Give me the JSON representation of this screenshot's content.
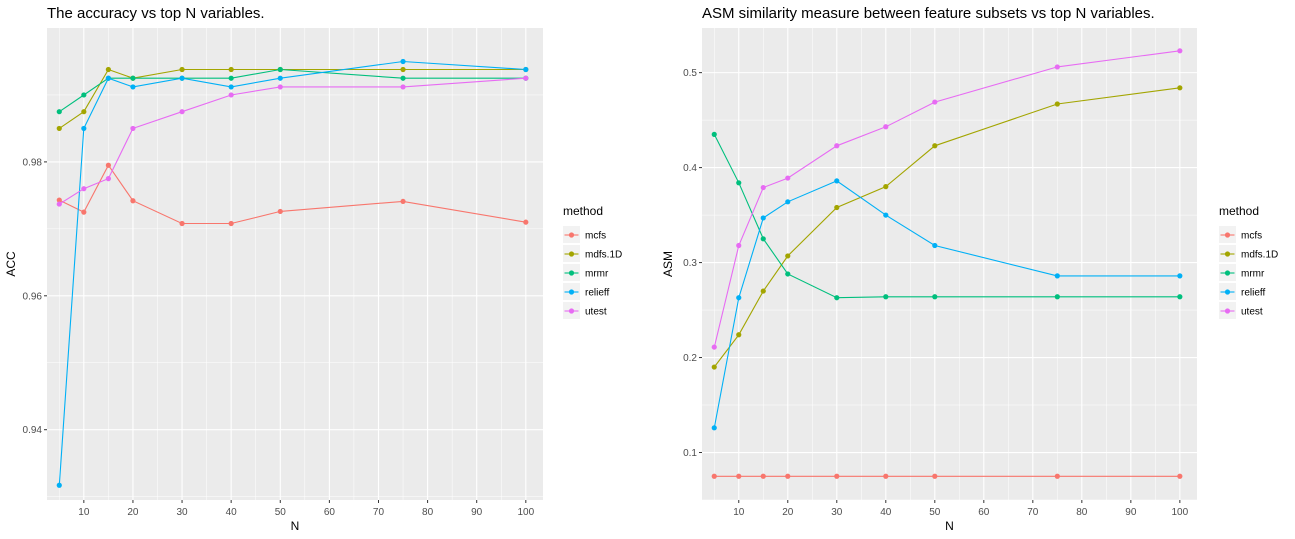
{
  "chart_data": [
    {
      "type": "line",
      "title": "The accuracy vs top N variables.",
      "xlabel": "N",
      "ylabel": "ACC",
      "x": [
        5,
        10,
        15,
        20,
        30,
        40,
        50,
        75,
        100
      ],
      "xticks": [
        "10",
        "20",
        "30",
        "40",
        "50",
        "60",
        "70",
        "80",
        "90",
        "100"
      ],
      "yticks": [
        "0.94",
        "0.96",
        "0.98"
      ],
      "xlim": [
        2.5,
        103.5
      ],
      "ylim": [
        0.9295,
        1.0
      ],
      "grid": true,
      "legend": {
        "title": "method",
        "position": "right"
      },
      "series": [
        {
          "name": "mcfs",
          "color": "#F8766D",
          "values": [
            0.9743,
            0.9725,
            0.9795,
            0.9742,
            0.9708,
            0.9708,
            0.9726,
            0.9741,
            0.971
          ]
        },
        {
          "name": "mdfs.1D",
          "color": "#A3A500",
          "values": [
            0.985,
            0.9875,
            0.9938,
            0.9925,
            0.9938,
            0.9938,
            0.9938,
            0.9938,
            0.9938
          ]
        },
        {
          "name": "mrmr",
          "color": "#00BF7D",
          "values": [
            0.9875,
            0.99,
            0.9925,
            0.9925,
            0.9925,
            0.9925,
            0.9938,
            0.9925,
            0.9925
          ]
        },
        {
          "name": "relieff",
          "color": "#00B0F6",
          "values": [
            0.9317,
            0.985,
            0.9925,
            0.9912,
            0.9925,
            0.9912,
            0.9925,
            0.995,
            0.9938
          ]
        },
        {
          "name": "utest",
          "color": "#E76BF3",
          "values": [
            0.9737,
            0.976,
            0.9775,
            0.985,
            0.9875,
            0.99,
            0.9912,
            0.9912,
            0.9925
          ]
        }
      ]
    },
    {
      "type": "line",
      "title": "ASM similarity measure between feature subsets vs top N variables.",
      "xlabel": "N",
      "ylabel": "ASM",
      "x": [
        5,
        10,
        15,
        20,
        30,
        40,
        50,
        75,
        100
      ],
      "xticks": [
        "10",
        "20",
        "30",
        "40",
        "50",
        "60",
        "70",
        "80",
        "90",
        "100"
      ],
      "yticks": [
        "0.1",
        "0.2",
        "0.3",
        "0.4",
        "0.5"
      ],
      "xlim": [
        2.5,
        103.5
      ],
      "ylim": [
        0.05,
        0.547
      ],
      "grid": true,
      "legend": {
        "title": "method",
        "position": "right"
      },
      "series": [
        {
          "name": "mcfs",
          "color": "#F8766D",
          "values": [
            0.075,
            0.075,
            0.075,
            0.075,
            0.075,
            0.075,
            0.075,
            0.075,
            0.075
          ]
        },
        {
          "name": "mdfs.1D",
          "color": "#A3A500",
          "values": [
            0.19,
            0.224,
            0.27,
            0.307,
            0.358,
            0.38,
            0.423,
            0.467,
            0.484
          ]
        },
        {
          "name": "mrmr",
          "color": "#00BF7D",
          "values": [
            0.435,
            0.384,
            0.325,
            0.288,
            0.263,
            0.264,
            0.264,
            0.264,
            0.264
          ]
        },
        {
          "name": "relieff",
          "color": "#00B0F6",
          "values": [
            0.126,
            0.263,
            0.347,
            0.364,
            0.386,
            0.35,
            0.318,
            0.286,
            0.286
          ]
        },
        {
          "name": "utest",
          "color": "#E76BF3",
          "values": [
            0.211,
            0.318,
            0.379,
            0.389,
            0.423,
            0.443,
            0.469,
            0.506,
            0.523
          ]
        }
      ]
    }
  ]
}
